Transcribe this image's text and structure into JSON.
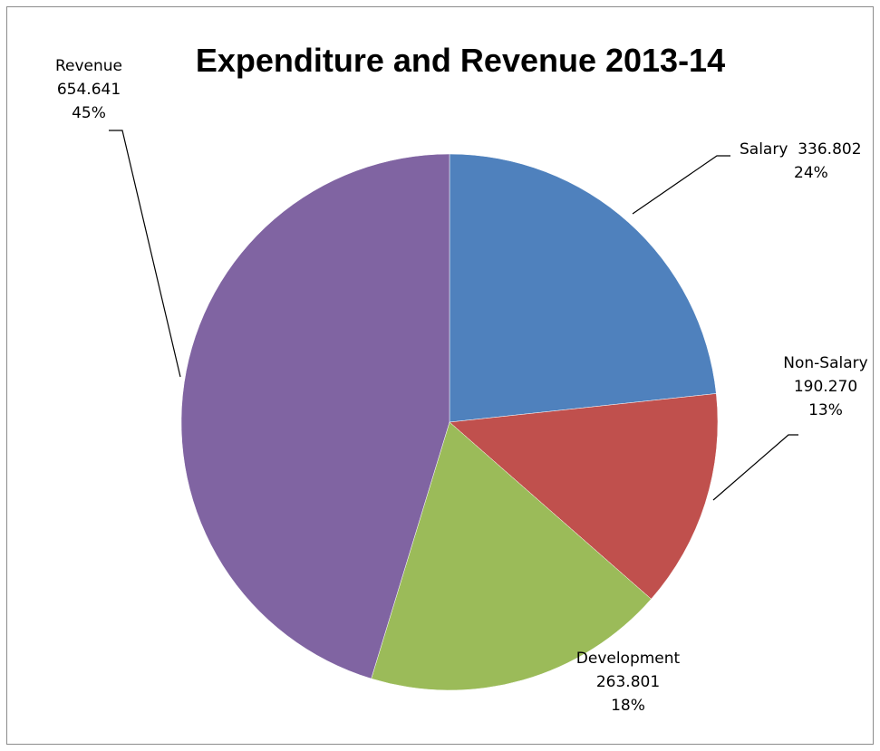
{
  "chart_data": {
    "type": "pie",
    "title": "Expenditure and Revenue 2013-14",
    "slices": [
      {
        "name": "Salary",
        "value": 336.802,
        "value_label": "336.802",
        "percent": "24%",
        "color": "#4F81BD"
      },
      {
        "name": "Non-Salary",
        "value": 190.27,
        "value_label": "190.270",
        "percent": "13%",
        "color": "#C0504D"
      },
      {
        "name": "Development",
        "value": 263.801,
        "value_label": "263.801",
        "percent": "18%",
        "color": "#9BBB59"
      },
      {
        "name": "Revenue",
        "value": 654.641,
        "value_label": "654.641",
        "percent": "45%",
        "color": "#8064A2"
      }
    ],
    "legend": "none",
    "labels": "outside-with-leader-lines"
  }
}
